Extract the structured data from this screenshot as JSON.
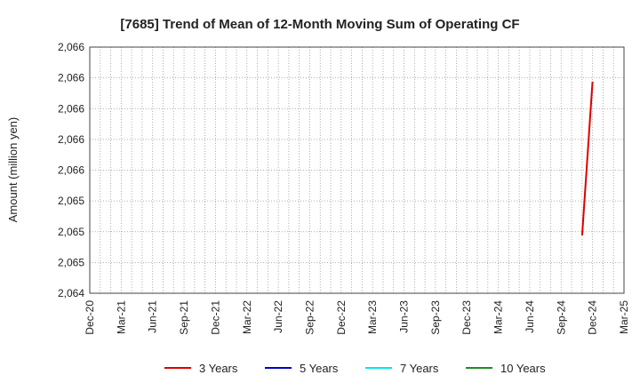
{
  "chart_data": {
    "type": "line",
    "title": "[7685]  Trend of Mean of 12-Month Moving Sum of Operating CF",
    "xlabel": "",
    "ylabel": "Amount (million yen)",
    "x_ticks": [
      "Dec-20",
      "Mar-21",
      "Jun-21",
      "Sep-21",
      "Dec-21",
      "Mar-22",
      "Jun-22",
      "Sep-22",
      "Dec-22",
      "Mar-23",
      "Jun-23",
      "Sep-23",
      "Dec-23",
      "Mar-24",
      "Jun-24",
      "Sep-24",
      "Dec-24",
      "Mar-25"
    ],
    "x_range": [
      "2020-12",
      "2025-03"
    ],
    "y_tick_labels": [
      "2,066",
      "2,066",
      "2,066",
      "2,066",
      "2,066",
      "2,065",
      "2,065",
      "2,065",
      "2,064"
    ],
    "ylim": [
      2064.0,
      2066.0
    ],
    "grid": true,
    "legend_position": "bottom",
    "series": [
      {
        "name": "3 Years",
        "color": "#dd0000",
        "x": [
          "2024-11",
          "2024-12"
        ],
        "y": [
          2064.47,
          2065.72
        ]
      },
      {
        "name": "5 Years",
        "color": "#0000cc",
        "x": [],
        "y": []
      },
      {
        "name": "7 Years",
        "color": "#00e5ee",
        "x": [],
        "y": []
      },
      {
        "name": "10 Years",
        "color": "#228b22",
        "x": [],
        "y": []
      }
    ]
  }
}
